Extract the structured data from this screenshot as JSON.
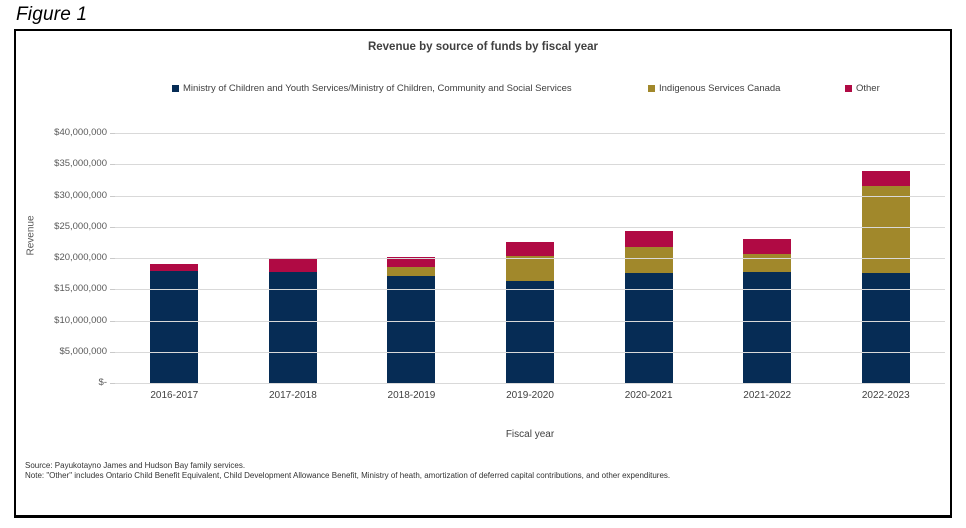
{
  "figure_label": "Figure 1",
  "chart_data": {
    "type": "bar",
    "stacked": true,
    "title": "Revenue by source of funds by fiscal year",
    "xlabel": "Fiscal year",
    "ylabel": "Revenue",
    "categories": [
      "2016-2017",
      "2017-2018",
      "2018-2019",
      "2019-2020",
      "2020-2021",
      "2021-2022",
      "2022-2023"
    ],
    "series": [
      {
        "name": "Ministry of Children and Youth Services/Ministry of Children, Community and Social Services",
        "color": "#062c55",
        "values": [
          18000000,
          17800000,
          17100000,
          16400000,
          17600000,
          17800000,
          17600000
        ]
      },
      {
        "name": "Indigenous Services Canada",
        "color": "#a1882b",
        "values": [
          0,
          0,
          1500000,
          3900000,
          4200000,
          2900000,
          14000000
        ]
      },
      {
        "name": "Other",
        "color": "#b00a44",
        "values": [
          1000000,
          2000000,
          1600000,
          2200000,
          2500000,
          2300000,
          2300000
        ]
      }
    ],
    "totals": [
      19000000,
      19800000,
      20200000,
      22500000,
      24300000,
      23000000,
      33900000
    ],
    "ylim": [
      0,
      40000000
    ],
    "ytick_step": 5000000,
    "ytick_labels_top_to_bottom": [
      "$40,000,000",
      "$35,000,000",
      "$30,000,000",
      "$25,000,000",
      "$20,000,000",
      "$15,000,000",
      "$10,000,000",
      "$5,000,000",
      "$-"
    ],
    "grid": true,
    "legend_position": "top"
  },
  "footer": {
    "source_line": "Source: Payukotayno James and Hudson Bay family services.",
    "note_line": "Note: \"Other\" includes Ontario Child Benefit Equivalent, Child Development Allowance Benefit, Ministry of heath, amortization of deferred capital contributions, and other expenditures."
  },
  "colors": {
    "ministry_series": "#062c55",
    "isc_series": "#a1882b",
    "other_series": "#b00a44",
    "gridline": "#d9d9d9",
    "axis_text": "#595959",
    "label_text": "#404040"
  }
}
